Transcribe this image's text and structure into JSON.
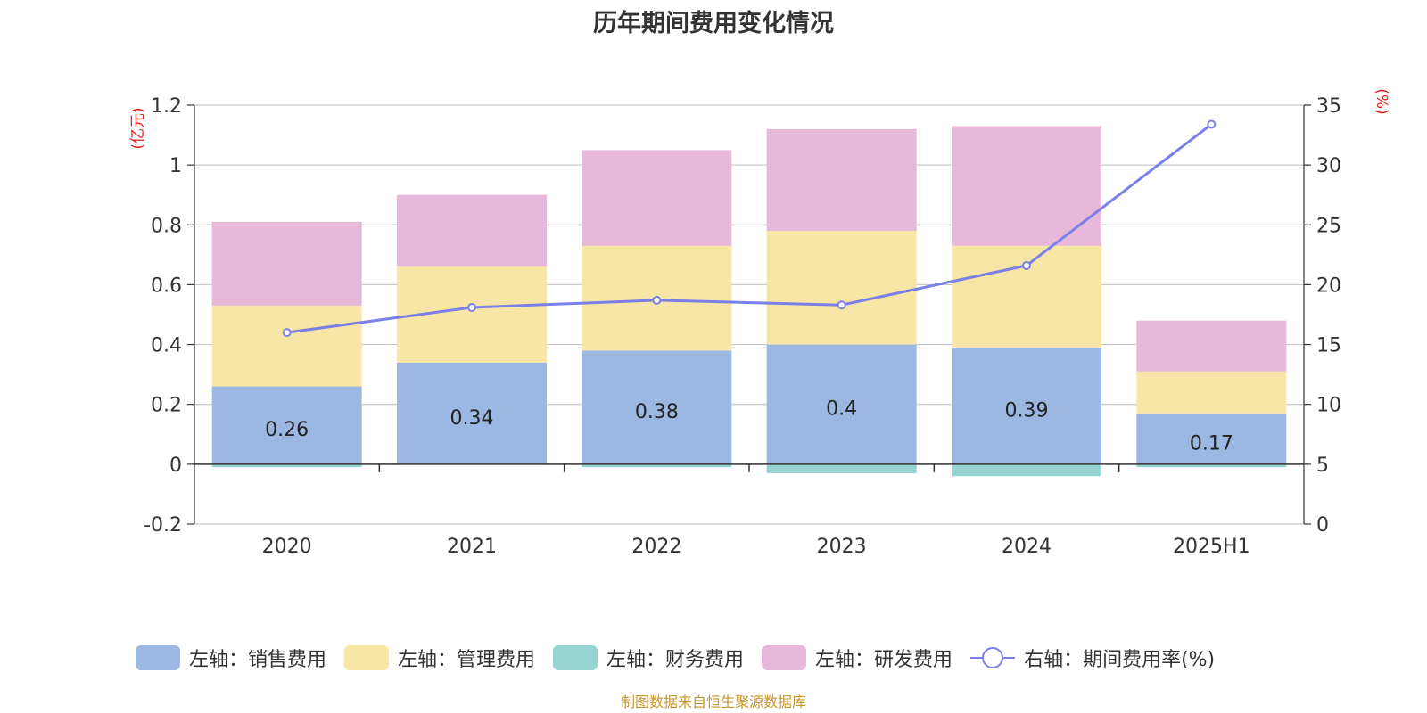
{
  "title": "历年期间费用变化情况",
  "source_note": "制图数据来自恒生聚源数据库",
  "chart_data": {
    "type": "bar",
    "stacked": true,
    "title": "历年期间费用变化情况",
    "categories": [
      "2020",
      "2021",
      "2022",
      "2023",
      "2024",
      "2025H1"
    ],
    "y_left": {
      "unit_label": "(亿元)",
      "range": [
        -0.2,
        1.2
      ],
      "ticks": [
        -0.2,
        0,
        0.2,
        0.4,
        0.6,
        0.8,
        1,
        1.2
      ],
      "tick_labels": [
        "-0.2",
        "0",
        "0.2",
        "0.4",
        "0.6",
        "0.8",
        "1",
        "1.2"
      ]
    },
    "y_right": {
      "unit_label": "(%)",
      "range": [
        0,
        35
      ],
      "ticks": [
        0,
        5,
        10,
        15,
        20,
        25,
        30,
        35
      ],
      "tick_labels": [
        "0",
        "5",
        "10",
        "15",
        "20",
        "25",
        "30",
        "35"
      ]
    },
    "grid": true,
    "legend_position": "bottom",
    "series": [
      {
        "name": "左轴：销售费用",
        "axis": "left",
        "type": "bar",
        "color": "#9bb7e2",
        "values": [
          0.26,
          0.34,
          0.38,
          0.4,
          0.39,
          0.17
        ],
        "labels": [
          "0.26",
          "0.34",
          "0.38",
          "0.4",
          "0.39",
          "0.17"
        ]
      },
      {
        "name": "左轴：管理费用",
        "axis": "left",
        "type": "bar",
        "color": "#f8e6a6",
        "values": [
          0.27,
          0.32,
          0.35,
          0.38,
          0.34,
          0.14
        ]
      },
      {
        "name": "左轴：财务费用",
        "axis": "left",
        "type": "bar",
        "color": "#96d3d3",
        "values": [
          -0.01,
          0.0,
          -0.01,
          -0.03,
          -0.04,
          -0.01
        ]
      },
      {
        "name": "左轴：研发费用",
        "axis": "left",
        "type": "bar",
        "color": "#e8b8d9",
        "values": [
          0.28,
          0.24,
          0.32,
          0.34,
          0.4,
          0.17
        ]
      },
      {
        "name": "右轴：期间费用率(%)",
        "axis": "right",
        "type": "line",
        "color": "#7b7fe8",
        "values": [
          16.0,
          18.1,
          18.7,
          18.3,
          21.6,
          33.4
        ]
      }
    ]
  }
}
